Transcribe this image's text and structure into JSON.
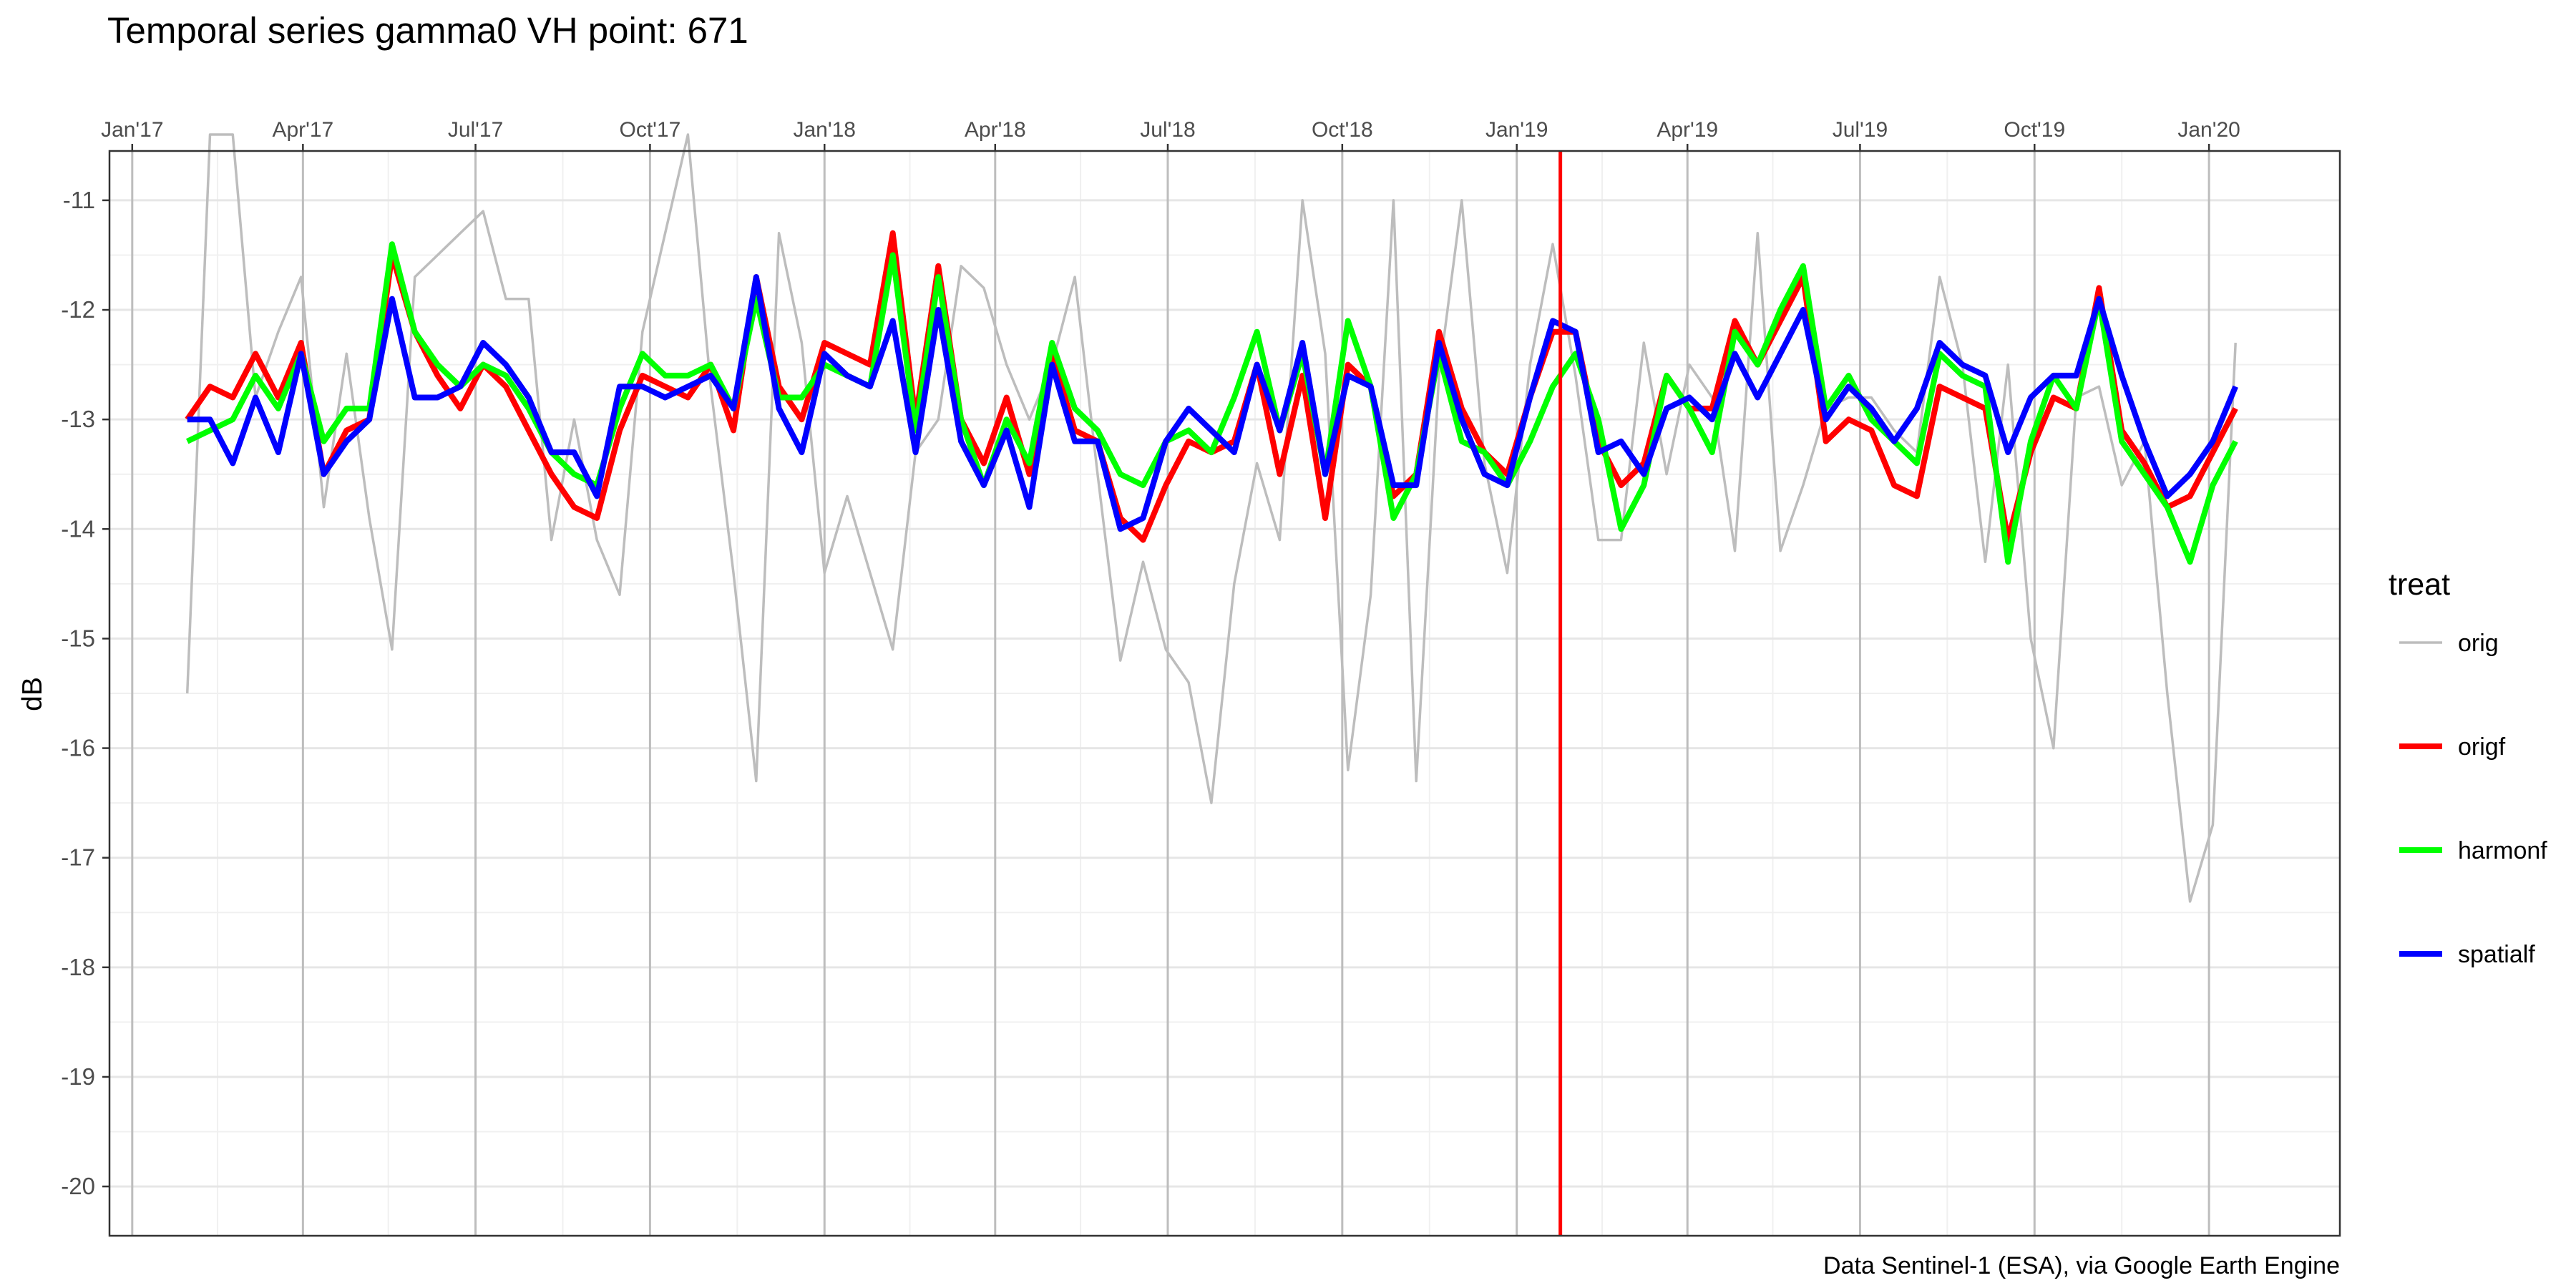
{
  "chart_data": {
    "type": "line",
    "title": "Temporal series gamma0 VH point: 671",
    "xlabel": "",
    "ylabel": "dB",
    "caption": "Data Sentinel-1 (ESA), via Google Earth Engine",
    "x_axis_position": "top",
    "xlim": [
      "2016-12-20",
      "2020-03-10"
    ],
    "ylim": [
      -20.45,
      -10.55
    ],
    "x_ticks": [
      {
        "date": "2017-01-01",
        "label": "Jan'17"
      },
      {
        "date": "2017-04-01",
        "label": "Apr'17"
      },
      {
        "date": "2017-07-01",
        "label": "Jul'17"
      },
      {
        "date": "2017-10-01",
        "label": "Oct'17"
      },
      {
        "date": "2018-01-01",
        "label": "Jan'18"
      },
      {
        "date": "2018-04-01",
        "label": "Apr'18"
      },
      {
        "date": "2018-07-01",
        "label": "Jul'18"
      },
      {
        "date": "2018-10-01",
        "label": "Oct'18"
      },
      {
        "date": "2019-01-01",
        "label": "Jan'19"
      },
      {
        "date": "2019-04-01",
        "label": "Apr'19"
      },
      {
        "date": "2019-07-01",
        "label": "Jul'19"
      },
      {
        "date": "2019-10-01",
        "label": "Oct'19"
      },
      {
        "date": "2020-01-01",
        "label": "Jan'20"
      }
    ],
    "y_ticks": [
      -11,
      -12,
      -13,
      -14,
      -15,
      -16,
      -17,
      -18,
      -19,
      -20
    ],
    "grid": true,
    "vline": {
      "date": "2019-01-24",
      "color": "#ff0000"
    },
    "legend": {
      "title": "treat",
      "position": "right"
    },
    "dates": [
      "2017-01-30",
      "2017-02-11",
      "2017-02-23",
      "2017-03-07",
      "2017-03-19",
      "2017-03-31",
      "2017-04-12",
      "2017-04-24",
      "2017-05-06",
      "2017-05-18",
      "2017-05-30",
      "2017-06-11",
      "2017-06-23",
      "2017-07-05",
      "2017-07-17",
      "2017-07-29",
      "2017-08-10",
      "2017-08-22",
      "2017-09-03",
      "2017-09-15",
      "2017-09-27",
      "2017-10-09",
      "2017-10-21",
      "2017-11-02",
      "2017-11-14",
      "2017-11-26",
      "2017-12-08",
      "2017-12-20",
      "2018-01-01",
      "2018-01-13",
      "2018-01-25",
      "2018-02-06",
      "2018-02-18",
      "2018-03-02",
      "2018-03-14",
      "2018-03-26",
      "2018-04-07",
      "2018-04-19",
      "2018-05-01",
      "2018-05-13",
      "2018-05-25",
      "2018-06-06",
      "2018-06-18",
      "2018-06-30",
      "2018-07-12",
      "2018-07-24",
      "2018-08-05",
      "2018-08-17",
      "2018-08-29",
      "2018-09-10",
      "2018-09-22",
      "2018-10-04",
      "2018-10-16",
      "2018-10-28",
      "2018-11-09",
      "2018-11-21",
      "2018-12-03",
      "2018-12-15",
      "2018-12-27",
      "2019-01-08",
      "2019-01-20",
      "2019-02-01",
      "2019-02-13",
      "2019-02-25",
      "2019-03-09",
      "2019-03-21",
      "2019-04-02",
      "2019-04-14",
      "2019-04-26",
      "2019-05-08",
      "2019-05-20",
      "2019-06-01",
      "2019-06-13",
      "2019-06-25",
      "2019-07-07",
      "2019-07-19",
      "2019-07-31",
      "2019-08-12",
      "2019-08-24",
      "2019-09-05",
      "2019-09-17",
      "2019-09-29",
      "2019-10-11",
      "2019-10-23",
      "2019-11-04",
      "2019-11-16",
      "2019-11-28",
      "2019-12-10",
      "2019-12-22",
      "2020-01-03",
      "2020-01-15",
      "2020-01-27"
    ],
    "series": [
      {
        "name": "orig",
        "color": "#bdbdbd",
        "width": 3.5,
        "values": [
          -15.5,
          -10.4,
          -10.4,
          -12.8,
          -12.2,
          -11.7,
          -13.8,
          -12.4,
          -13.9,
          -15.1,
          -11.7,
          -11.5,
          -11.3,
          -11.1,
          -11.9,
          -11.9,
          -14.1,
          -13.0,
          -14.1,
          -14.6,
          -12.2,
          -11.3,
          -10.4,
          -12.7,
          -14.4,
          -16.3,
          -11.3,
          -12.3,
          -14.4,
          -13.7,
          -14.4,
          -15.1,
          -13.3,
          -13.0,
          -11.6,
          -11.8,
          -12.5,
          -13.0,
          -12.5,
          -11.7,
          -13.5,
          -15.2,
          -14.3,
          -15.1,
          -15.4,
          -16.5,
          -14.5,
          -13.4,
          -14.1,
          -11.0,
          -12.4,
          -16.2,
          -14.6,
          -11.0,
          -16.3,
          -12.6,
          -11.0,
          -13.4,
          -14.4,
          -12.5,
          -11.4,
          -12.6,
          -14.1,
          -14.1,
          -12.3,
          -13.5,
          -12.5,
          -12.8,
          -14.2,
          -11.3,
          -14.2,
          -13.6,
          -12.9,
          -12.8,
          -12.8,
          -13.1,
          -13.3,
          -11.7,
          -12.5,
          -14.3,
          -12.5,
          -15.0,
          -16.0,
          -12.8,
          -12.7,
          -13.6,
          -13.2,
          -15.5,
          -17.4,
          -16.7,
          -12.3,
          null
        ]
      },
      {
        "name": "origf",
        "color": "#ff0000",
        "width": 8,
        "values": [
          -13.0,
          -12.7,
          -12.8,
          -12.4,
          -12.8,
          -12.3,
          -13.5,
          -13.1,
          -13.0,
          -11.5,
          -12.2,
          -12.6,
          -12.9,
          -12.5,
          -12.7,
          -13.1,
          -13.5,
          -13.8,
          -13.9,
          -13.1,
          -12.6,
          -12.7,
          -12.8,
          -12.5,
          -13.1,
          -11.7,
          -12.7,
          -13.0,
          -12.3,
          -12.4,
          -12.5,
          -11.3,
          -13.0,
          -11.6,
          -13.0,
          -13.4,
          -12.8,
          -13.5,
          -12.4,
          -13.1,
          -13.2,
          -13.9,
          -14.1,
          -13.6,
          -13.2,
          -13.3,
          -13.2,
          -12.5,
          -13.5,
          -12.6,
          -13.9,
          -12.5,
          -12.7,
          -13.7,
          -13.5,
          -12.2,
          -12.9,
          -13.3,
          -13.5,
          -12.8,
          -12.2,
          -12.2,
          -13.2,
          -13.6,
          -13.4,
          -12.6,
          -12.9,
          -12.9,
          -12.1,
          -12.5,
          -12.1,
          -11.7,
          -13.2,
          -13.0,
          -13.1,
          -13.6,
          -13.7,
          -12.7,
          -12.8,
          -12.9,
          -14.1,
          -13.3,
          -12.8,
          -12.9,
          -11.8,
          -13.1,
          -13.4,
          -13.8,
          -13.7,
          -13.3,
          -12.9,
          null
        ]
      },
      {
        "name": "harmonf",
        "color": "#00ff00",
        "width": 8,
        "values": [
          -13.2,
          -13.1,
          -13.0,
          -12.6,
          -12.9,
          -12.4,
          -13.2,
          -12.9,
          -12.9,
          -11.4,
          -12.2,
          -12.5,
          -12.7,
          -12.5,
          -12.6,
          -12.9,
          -13.3,
          -13.5,
          -13.6,
          -12.9,
          -12.4,
          -12.6,
          -12.6,
          -12.5,
          -12.9,
          -11.9,
          -12.8,
          -12.8,
          -12.5,
          -12.6,
          -12.7,
          -11.5,
          -13.1,
          -11.7,
          -13.0,
          -13.6,
          -13.0,
          -13.4,
          -12.3,
          -12.9,
          -13.1,
          -13.5,
          -13.6,
          -13.2,
          -13.1,
          -13.3,
          -12.8,
          -12.2,
          -13.1,
          -12.4,
          -13.5,
          -12.1,
          -12.7,
          -13.9,
          -13.5,
          -12.4,
          -13.2,
          -13.3,
          -13.6,
          -13.2,
          -12.7,
          -12.4,
          -13.0,
          -14.0,
          -13.6,
          -12.6,
          -12.9,
          -13.3,
          -12.2,
          -12.5,
          -12.0,
          -11.6,
          -12.9,
          -12.6,
          -13.0,
          -13.2,
          -13.4,
          -12.4,
          -12.6,
          -12.7,
          -14.3,
          -13.2,
          -12.6,
          -12.9,
          -11.9,
          -13.2,
          -13.5,
          -13.8,
          -14.3,
          -13.6,
          -13.2,
          null
        ]
      },
      {
        "name": "spatialf",
        "color": "#0000ff",
        "width": 8,
        "values": [
          -13.0,
          -13.0,
          -13.4,
          -12.8,
          -13.3,
          -12.4,
          -13.5,
          -13.2,
          -13.0,
          -11.9,
          -12.8,
          -12.8,
          -12.7,
          -12.3,
          -12.5,
          -12.8,
          -13.3,
          -13.3,
          -13.7,
          -12.7,
          -12.7,
          -12.8,
          -12.7,
          -12.6,
          -12.9,
          -11.7,
          -12.9,
          -13.3,
          -12.4,
          -12.6,
          -12.7,
          -12.1,
          -13.3,
          -12.0,
          -13.2,
          -13.6,
          -13.1,
          -13.8,
          -12.5,
          -13.2,
          -13.2,
          -14.0,
          -13.9,
          -13.2,
          -12.9,
          -13.1,
          -13.3,
          -12.5,
          -13.1,
          -12.3,
          -13.5,
          -12.6,
          -12.7,
          -13.6,
          -13.6,
          -12.3,
          -13.0,
          -13.5,
          -13.6,
          -12.8,
          -12.1,
          -12.2,
          -13.3,
          -13.2,
          -13.5,
          -12.9,
          -12.8,
          -13.0,
          -12.4,
          -12.8,
          -12.4,
          -12.0,
          -13.0,
          -12.7,
          -12.9,
          -13.2,
          -12.9,
          -12.3,
          -12.5,
          -12.6,
          -13.3,
          -12.8,
          -12.6,
          -12.6,
          -11.9,
          -12.6,
          -13.2,
          -13.7,
          -13.5,
          -13.2,
          -12.7,
          null
        ]
      }
    ]
  }
}
